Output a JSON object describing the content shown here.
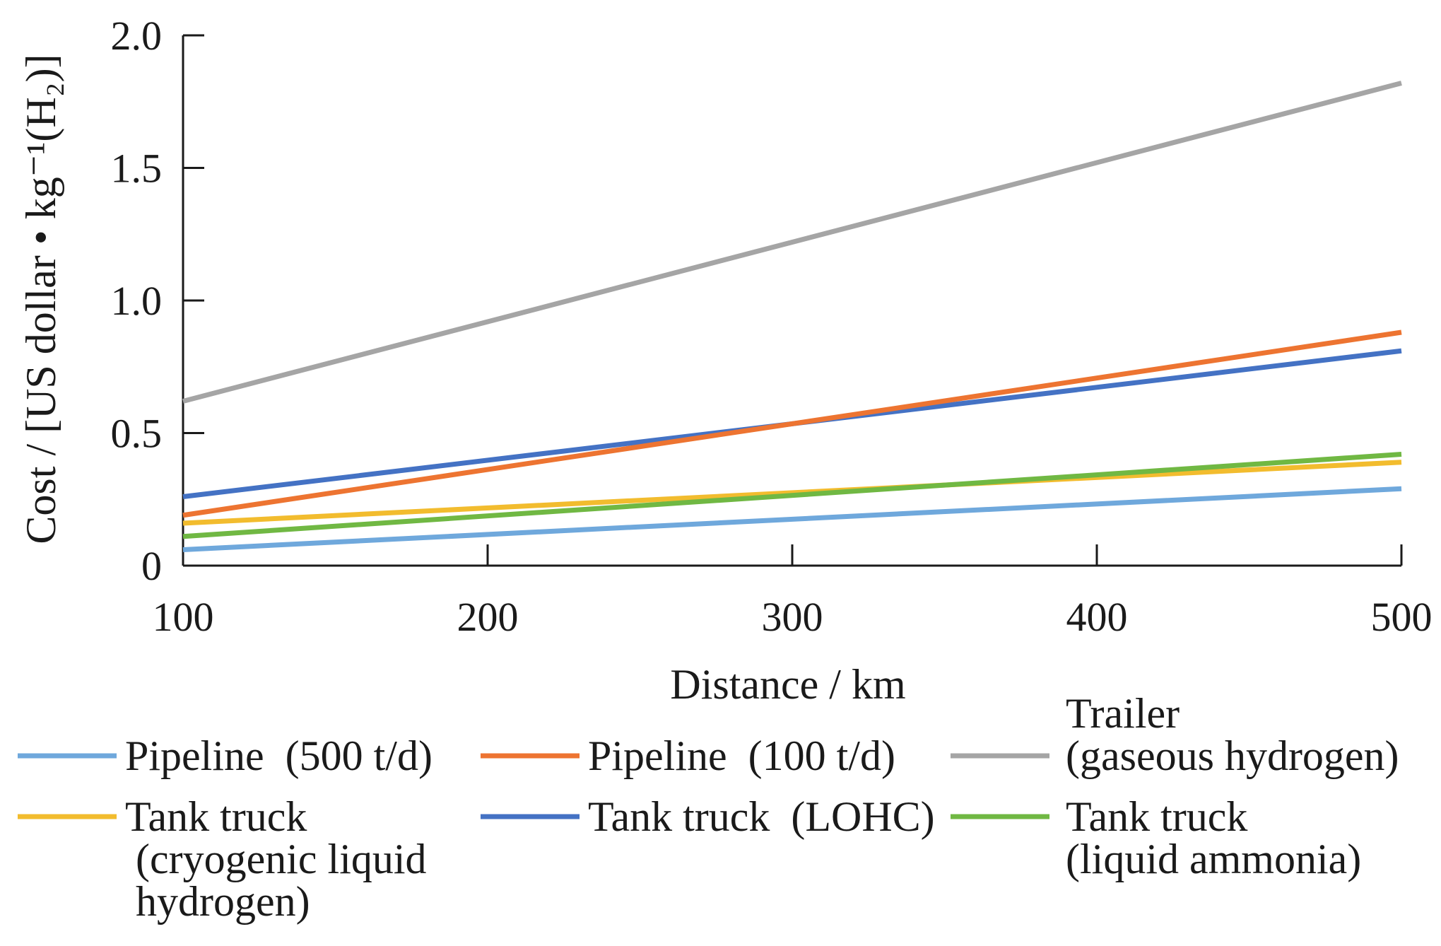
{
  "chart_data": {
    "type": "line",
    "title": "",
    "xlabel": "Distance / km",
    "ylabel": "Cost / [US dollar • kg⁻¹(H₂)]",
    "xlim": [
      100,
      500
    ],
    "ylim": [
      0,
      2.0
    ],
    "xticks": [
      "100",
      "200",
      "300",
      "400",
      "500"
    ],
    "yticks": [
      "0",
      "0.5",
      "1.0",
      "1.5",
      "2.0"
    ],
    "x": [
      100,
      500
    ],
    "series": [
      {
        "name": "Pipeline  (500 t/d)",
        "lines": [
          "Pipeline  (500 t/d)"
        ],
        "color": "#6fa8dc",
        "values": [
          0.06,
          0.29
        ]
      },
      {
        "name": "Pipeline  (100 t/d)",
        "lines": [
          "Pipeline  (100 t/d)"
        ],
        "color": "#ed7431",
        "values": [
          0.19,
          0.88
        ]
      },
      {
        "name": "Trailer (gaseous hydrogen)",
        "lines": [
          "Trailer",
          "(gaseous hydrogen)"
        ],
        "color": "#a5a5a5",
        "values": [
          0.62,
          1.82
        ]
      },
      {
        "name": "Tank truck (cryogenic liquid hydrogen)",
        "lines": [
          "Tank truck",
          " (cryogenic liquid",
          " hydrogen)"
        ],
        "color": "#f2bc2e",
        "values": [
          0.16,
          0.39
        ]
      },
      {
        "name": "Tank truck  (LOHC)",
        "lines": [
          "Tank truck  (LOHC)"
        ],
        "color": "#4472c4",
        "values": [
          0.26,
          0.81
        ]
      },
      {
        "name": "Tank truck (liquid ammonia)",
        "lines": [
          "Tank truck",
          "(liquid ammonia)"
        ],
        "color": "#70b843",
        "values": [
          0.11,
          0.42
        ]
      }
    ],
    "legend_position": "bottom",
    "grid": false
  }
}
